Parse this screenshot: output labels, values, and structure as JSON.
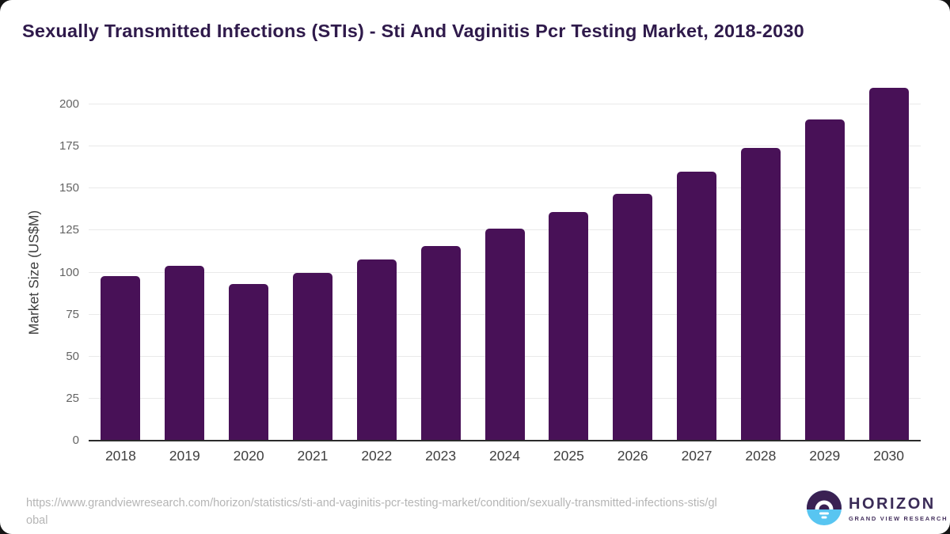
{
  "title": "Sexually Transmitted Infections (STIs) - Sti And Vaginitis Pcr Testing Market, 2018-2030",
  "chart_data": {
    "type": "bar",
    "title": "Sexually Transmitted Infections (STIs) - Sti And Vaginitis Pcr Testing Market, 2018-2030",
    "categories": [
      "2018",
      "2019",
      "2020",
      "2021",
      "2022",
      "2023",
      "2024",
      "2025",
      "2026",
      "2027",
      "2028",
      "2029",
      "2030"
    ],
    "values": [
      98,
      104,
      93,
      100,
      108,
      116,
      126,
      136,
      147,
      160,
      174,
      191,
      210
    ],
    "xlabel": "",
    "ylabel": "Market Size (US$M)",
    "ylim": [
      0,
      200
    ],
    "ytick_step": 25,
    "yticks": [
      "0",
      "25",
      "50",
      "75",
      "100",
      "125",
      "150",
      "175",
      "200"
    ],
    "grid": true,
    "legend": "none",
    "bar_color": "#481157",
    "gridline_color": "#e9e9e9",
    "axis_line_color": "#2b2b2b"
  },
  "footer": {
    "source_url": "https://www.grandviewresearch.com/horizon/statistics/sti-and-vaginitis-pcr-testing-market/condition/sexually-transmitted-infections-stis/global",
    "logo": {
      "brand": "HORIZON",
      "sub_brand": "GRAND VIEW RESEARCH",
      "mark_top_color": "#3a2153",
      "mark_bottom_color": "#58c5f1"
    }
  }
}
